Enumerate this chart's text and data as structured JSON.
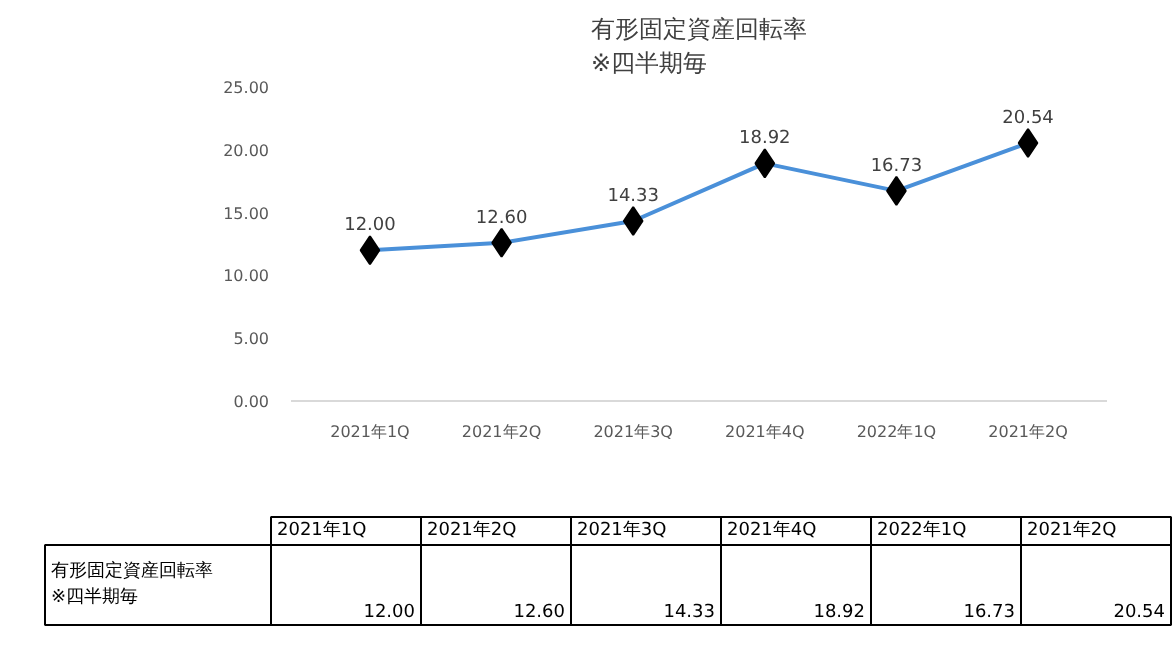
{
  "chart_data": {
    "type": "line",
    "title": "有形固定資産回転率\n※四半期毎",
    "categories": [
      "2021年1Q",
      "2021年2Q",
      "2021年3Q",
      "2021年4Q",
      "2022年1Q",
      "2021年2Q"
    ],
    "series": [
      {
        "name": "有形固定資産回転率\n※四半期毎",
        "color": "#4a90d9",
        "values": [
          12.0,
          12.6,
          14.33,
          18.92,
          16.73,
          20.54
        ],
        "value_labels": [
          "12.00",
          "12.60",
          "14.33",
          "18.92",
          "16.73",
          "20.54"
        ]
      }
    ],
    "ylim": [
      0,
      25
    ],
    "yticks": [
      {
        "value": 0,
        "label": "0.00"
      },
      {
        "value": 5,
        "label": "5.00"
      },
      {
        "value": 10,
        "label": "10.00"
      },
      {
        "value": 15,
        "label": "15.00"
      },
      {
        "value": 20,
        "label": "20.00"
      },
      {
        "value": 25,
        "label": "25.00"
      }
    ],
    "grid": false,
    "marker": "diamond",
    "line_style": "solid"
  }
}
